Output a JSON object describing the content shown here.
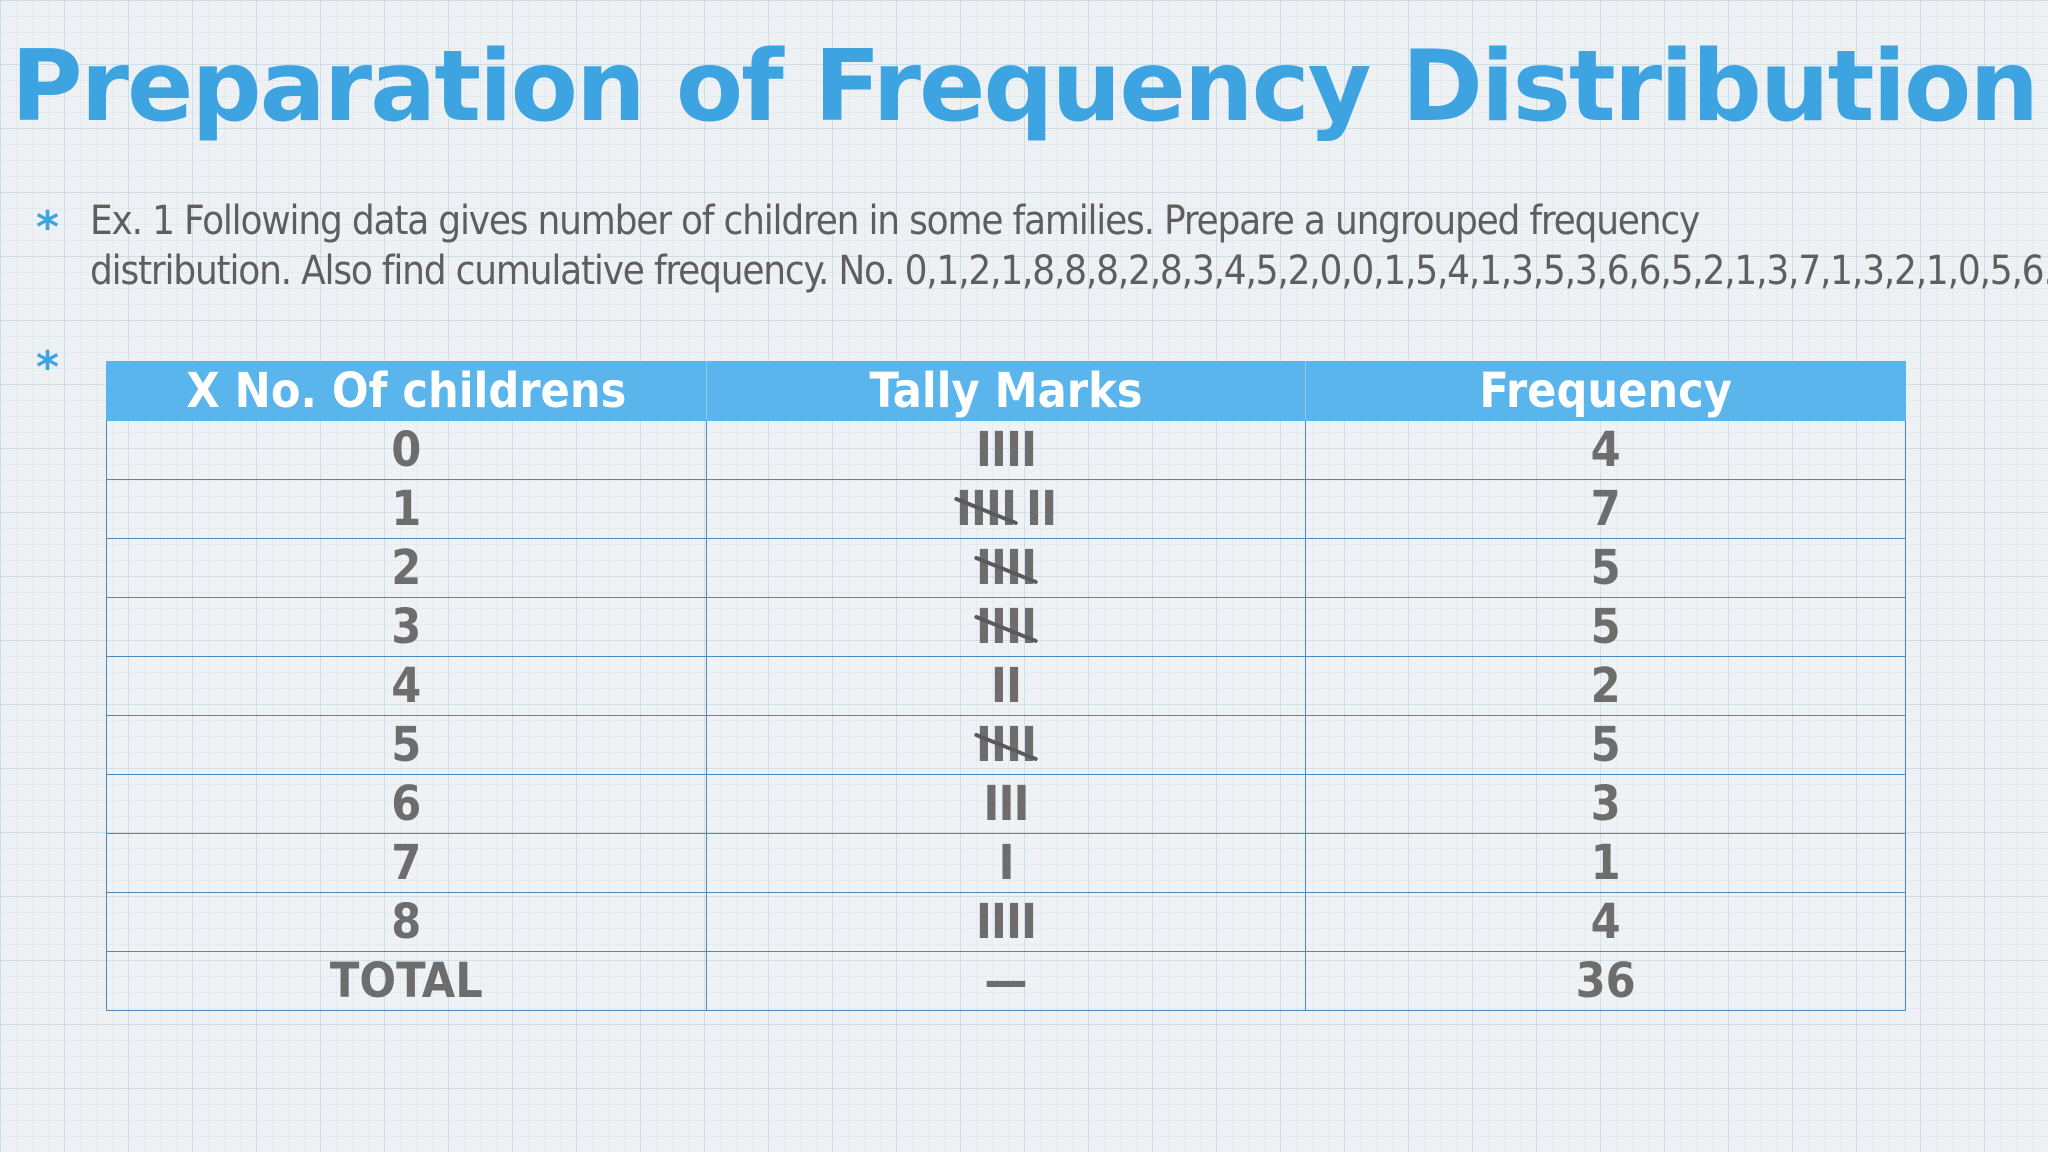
{
  "slide": {
    "title": "Preparation of Frequency Distribution",
    "bullet_symbol": "*",
    "question_line_1": "Ex. 1 Following data gives number of children in some families. Prepare a ungrouped frequency",
    "question_line_2": "distribution. Also find cumulative frequency.  No. 0,1,2,1,8,8,8,2,8,3,4,5,2,0,0,1,5,4,1,3,5,3,6,6,5,2,1,3,7,1,3,2,1,0,5,6."
  },
  "colors": {
    "accent": "#3ea4e1",
    "header_bg": "#59b5ec",
    "grid_line": "#4d89bd",
    "body_text": "#6d6d6d"
  },
  "table": {
    "headers": [
      "X No. Of childrens",
      "Tally Marks",
      "Frequency"
    ],
    "rows": [
      {
        "x": "0",
        "tally_group": "",
        "tally_extra": "IIII",
        "frequency": "4"
      },
      {
        "x": "1",
        "tally_group": "IIII",
        "tally_extra": "II",
        "frequency": "7"
      },
      {
        "x": "2",
        "tally_group": "IIII",
        "tally_extra": "",
        "frequency": "5"
      },
      {
        "x": "3",
        "tally_group": "IIII",
        "tally_extra": "",
        "frequency": "5"
      },
      {
        "x": "4",
        "tally_group": "",
        "tally_extra": "II",
        "frequency": "2"
      },
      {
        "x": "5",
        "tally_group": "IIII",
        "tally_extra": "",
        "frequency": "5"
      },
      {
        "x": "6",
        "tally_group": "",
        "tally_extra": "III",
        "frequency": "3"
      },
      {
        "x": "7",
        "tally_group": "",
        "tally_extra": "I",
        "frequency": "1"
      },
      {
        "x": "8",
        "tally_group": "",
        "tally_extra": "IIII",
        "frequency": "4"
      }
    ],
    "total_row": {
      "x": "TOTAL",
      "tally": "—",
      "frequency": "36"
    }
  }
}
